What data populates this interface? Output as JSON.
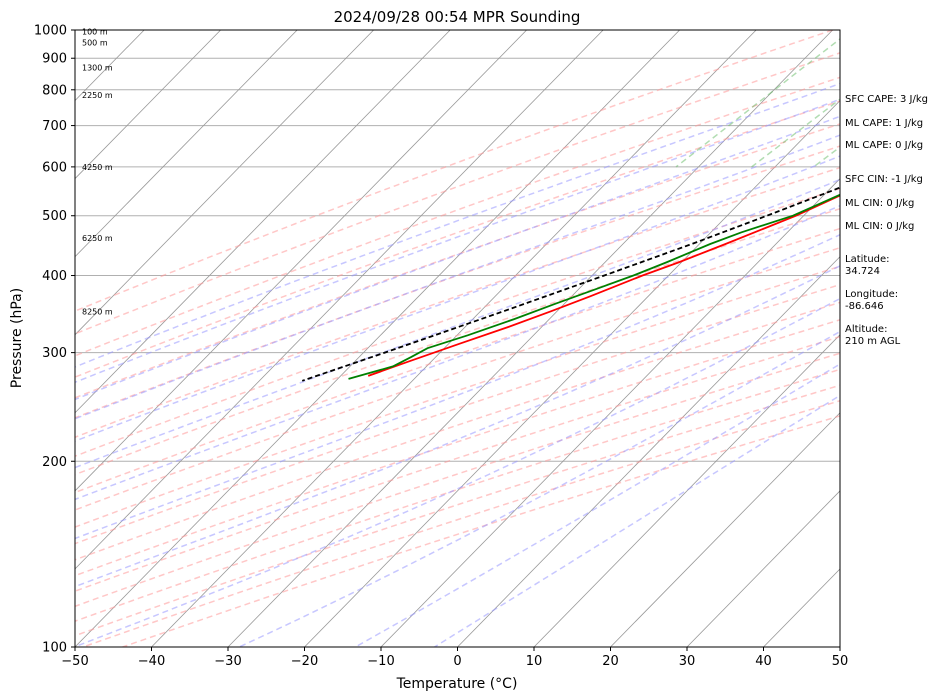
{
  "chart_data": {
    "type": "line",
    "title": "2024/09/28 00:54 MPR Sounding",
    "xlabel": "Temperature (°C)",
    "ylabel": "Pressure (hPa)",
    "xlim": [
      -50,
      50
    ],
    "ylim": [
      1000,
      100
    ],
    "y_scale": "log",
    "x_ticks": [
      "−50",
      "−40",
      "−30",
      "−20",
      "−10",
      "0",
      "10",
      "20",
      "30",
      "40",
      "50"
    ],
    "y_ticks": [
      "100",
      "200",
      "300",
      "400",
      "500",
      "600",
      "700",
      "800",
      "900",
      "1000"
    ],
    "skew_t": true,
    "grid": true,
    "height_labels": [
      "8250 m",
      "6250 m",
      "4250 m",
      "2250 m",
      "1300 m",
      "500 m",
      "100 m"
    ],
    "height_label_pressures": [
      350,
      460,
      600,
      785,
      870,
      955,
      995
    ],
    "colors": {
      "temperature": "#ff0000",
      "dewpoint": "#008000",
      "parcel": "#000000",
      "dry_adiabats": "#ff9999",
      "moist_adiabats": "#9999ff",
      "mixing_ratio": "#66bb66",
      "isotherms": "#999999"
    },
    "series": [
      {
        "key": "temperature",
        "pressure": [
          975,
          955,
          940,
          900,
          850,
          800,
          750,
          700,
          650,
          600,
          550,
          500,
          450,
          420,
          400,
          370,
          350,
          330,
          310,
          290,
          275
        ],
        "values": [
          19.2,
          17.0,
          15.8,
          14.2,
          12.2,
          10.0,
          7.0,
          4.0,
          0.4,
          -3.6,
          -7.0,
          -11.0,
          -16.6,
          -20.4,
          -23.4,
          -27.6,
          -30.8,
          -34.4,
          -38.6,
          -43.0,
          -46.4
        ]
      },
      {
        "key": "dewpoint",
        "pressure": [
          970,
          955,
          935,
          900,
          850,
          800,
          750,
          700,
          650,
          600,
          550,
          500,
          470,
          450,
          420,
          400,
          380,
          360,
          340,
          320,
          305,
          295,
          285,
          272
        ],
        "values": [
          18.0,
          16.6,
          15.4,
          14.2,
          12.2,
          10.0,
          7.0,
          4.0,
          0.4,
          -3.8,
          -7.2,
          -11.4,
          -16.0,
          -18.6,
          -22.0,
          -24.6,
          -27.8,
          -31.2,
          -34.6,
          -38.6,
          -42.2,
          -43.2,
          -44.4,
          -48.6
        ]
      },
      {
        "key": "parcel",
        "pressure": [
          975,
          900,
          850,
          800,
          750,
          700,
          650,
          600,
          550,
          500,
          450,
          400,
          350,
          300,
          270
        ],
        "values": [
          19.0,
          15.2,
          12.6,
          9.8,
          6.6,
          3.0,
          -0.8,
          -4.8,
          -9.4,
          -14.8,
          -21.0,
          -28.4,
          -37.0,
          -47.2,
          -54.4
        ]
      }
    ]
  },
  "side_panel": {
    "sfc_cape": "SFC CAPE: 3 J/kg",
    "ml_cape_1": "ML CAPE: 1 J/kg",
    "ml_cape_2": "ML CAPE: 0 J/kg",
    "sfc_cin": "SFC CIN: -1 J/kg",
    "ml_cin_1": "ML CIN: 0 J/kg",
    "ml_cin_2": "ML CIN: 0 J/kg",
    "latitude_label": "Latitude:",
    "latitude_value": "34.724",
    "longitude_label": "Longitude:",
    "longitude_value": "-86.646",
    "altitude_label": "Altitude:",
    "altitude_value": "210 m AGL"
  }
}
